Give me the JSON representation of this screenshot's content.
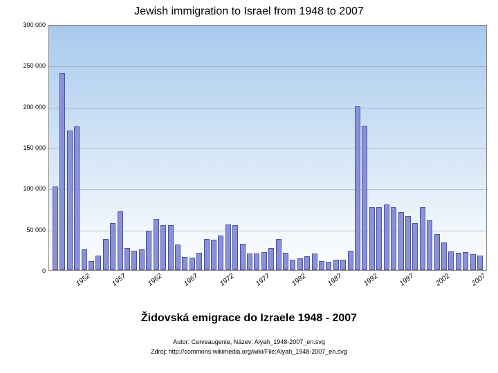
{
  "chart": {
    "type": "bar",
    "title": "Jewish immigration to Israel from 1948 to 2007",
    "title_fontsize": 16,
    "title_color": "#000000",
    "background_gradient_top": "#a7caed",
    "background_gradient_bottom": "#ffffff",
    "bar_fill": "#8a91d8",
    "bar_border": "#4a529e",
    "grid_color": "#888888",
    "axis_color": "#888888",
    "ylim": [
      0,
      300000
    ],
    "ytick_step": 50000,
    "y_ticks": [
      "0",
      "50 000",
      "100 000",
      "150 000",
      "200 000",
      "250 000",
      "300 000"
    ],
    "y_tick_fontsize": 9,
    "x_tick_years": [
      1952,
      1957,
      1962,
      1967,
      1972,
      1977,
      1982,
      1987,
      1992,
      1997,
      2002,
      2007
    ],
    "x_tick_fontsize": 10,
    "x_tick_rotation_deg": -38,
    "years_start": 1948,
    "years_end": 2007,
    "values": [
      102000,
      240000,
      170000,
      175000,
      25000,
      11000,
      18000,
      38000,
      57000,
      72000,
      27000,
      24000,
      25000,
      48000,
      62000,
      55000,
      55000,
      31000,
      16000,
      15000,
      21000,
      38000,
      37000,
      42000,
      56000,
      55000,
      32000,
      20000,
      20000,
      22000,
      27000,
      38000,
      21000,
      13000,
      14000,
      17000,
      20000,
      11000,
      10000,
      13000,
      13000,
      24000,
      200000,
      176000,
      77000,
      77000,
      80000,
      77000,
      71000,
      66000,
      57000,
      77000,
      61000,
      44000,
      34000,
      23000,
      21000,
      22000,
      19000,
      18000
    ]
  },
  "caption": "Židovská emigrace do Izraele 1948 - 2007",
  "credit_line_1": "Autor: Cerveaugenie, Název: Alyah_1948-2007_en.svg",
  "credit_line_2": "Zdroj: http://commons.wikimedia.org/wiki/File:Alyah_1948-2007_en.svg",
  "caption_fontsize": 16,
  "credit_fontsize": 9
}
